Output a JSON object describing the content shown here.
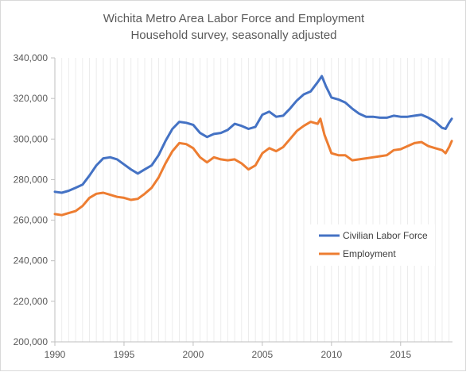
{
  "chart_data": {
    "type": "line",
    "title": "Wichita Metro Area Labor Force and Employment",
    "subtitle": "Household survey, seasonally adjusted",
    "xlabel": "",
    "ylabel": "",
    "xlim": [
      1990,
      2018.75
    ],
    "ylim": [
      200000,
      340000
    ],
    "x_ticks": [
      1990,
      1995,
      2000,
      2005,
      2010,
      2015
    ],
    "x_tick_labels": [
      "1990",
      "1995",
      "2000",
      "2005",
      "2010",
      "2015"
    ],
    "y_ticks": [
      200000,
      220000,
      240000,
      260000,
      280000,
      300000,
      320000,
      340000
    ],
    "y_tick_labels": [
      "200,000",
      "220,000",
      "240,000",
      "260,000",
      "280,000",
      "300,000",
      "320,000",
      "340,000"
    ],
    "grid": "vertical minor lines",
    "legend_position": "right",
    "series": [
      {
        "name": "Civilian Labor Force",
        "color": "#4472c4",
        "points": [
          [
            1990.0,
            274000
          ],
          [
            1990.5,
            273500
          ],
          [
            1991.0,
            274500
          ],
          [
            1991.5,
            276000
          ],
          [
            1992.0,
            277500
          ],
          [
            1992.5,
            282000
          ],
          [
            1993.0,
            287000
          ],
          [
            1993.5,
            290500
          ],
          [
            1994.0,
            291000
          ],
          [
            1994.5,
            290000
          ],
          [
            1995.0,
            287500
          ],
          [
            1995.5,
            285000
          ],
          [
            1996.0,
            283000
          ],
          [
            1996.5,
            285000
          ],
          [
            1997.0,
            287000
          ],
          [
            1997.5,
            292000
          ],
          [
            1998.0,
            299000
          ],
          [
            1998.5,
            305000
          ],
          [
            1999.0,
            308500
          ],
          [
            1999.5,
            308000
          ],
          [
            2000.0,
            307000
          ],
          [
            2000.5,
            303000
          ],
          [
            2001.0,
            301000
          ],
          [
            2001.5,
            302500
          ],
          [
            2002.0,
            303000
          ],
          [
            2002.5,
            304500
          ],
          [
            2003.0,
            307500
          ],
          [
            2003.5,
            306500
          ],
          [
            2004.0,
            305000
          ],
          [
            2004.5,
            306000
          ],
          [
            2005.0,
            312000
          ],
          [
            2005.5,
            313500
          ],
          [
            2006.0,
            311000
          ],
          [
            2006.5,
            311500
          ],
          [
            2007.0,
            315000
          ],
          [
            2007.5,
            319000
          ],
          [
            2008.0,
            322000
          ],
          [
            2008.5,
            323500
          ],
          [
            2009.0,
            328000
          ],
          [
            2009.3,
            331000
          ],
          [
            2009.6,
            326000
          ],
          [
            2010.0,
            320500
          ],
          [
            2010.5,
            319500
          ],
          [
            2011.0,
            318000
          ],
          [
            2011.5,
            315000
          ],
          [
            2012.0,
            312500
          ],
          [
            2012.5,
            311000
          ],
          [
            2013.0,
            311000
          ],
          [
            2013.5,
            310500
          ],
          [
            2014.0,
            310500
          ],
          [
            2014.5,
            311500
          ],
          [
            2015.0,
            311000
          ],
          [
            2015.5,
            311000
          ],
          [
            2016.0,
            311500
          ],
          [
            2016.5,
            312000
          ],
          [
            2017.0,
            310500
          ],
          [
            2017.5,
            308500
          ],
          [
            2018.0,
            305500
          ],
          [
            2018.25,
            305000
          ],
          [
            2018.5,
            308000
          ],
          [
            2018.7,
            310000
          ]
        ]
      },
      {
        "name": "Employment",
        "color": "#ed7d31",
        "points": [
          [
            1990.0,
            263000
          ],
          [
            1990.5,
            262500
          ],
          [
            1991.0,
            263500
          ],
          [
            1991.5,
            264500
          ],
          [
            1992.0,
            267000
          ],
          [
            1992.5,
            271000
          ],
          [
            1993.0,
            273000
          ],
          [
            1993.5,
            273500
          ],
          [
            1994.0,
            272500
          ],
          [
            1994.5,
            271500
          ],
          [
            1995.0,
            271000
          ],
          [
            1995.5,
            270000
          ],
          [
            1996.0,
            270500
          ],
          [
            1996.5,
            273000
          ],
          [
            1997.0,
            276000
          ],
          [
            1997.5,
            281000
          ],
          [
            1998.0,
            288000
          ],
          [
            1998.5,
            294000
          ],
          [
            1999.0,
            298000
          ],
          [
            1999.5,
            297500
          ],
          [
            2000.0,
            295500
          ],
          [
            2000.5,
            291000
          ],
          [
            2001.0,
            288500
          ],
          [
            2001.5,
            291000
          ],
          [
            2002.0,
            290000
          ],
          [
            2002.5,
            289500
          ],
          [
            2003.0,
            290000
          ],
          [
            2003.5,
            288000
          ],
          [
            2004.0,
            285000
          ],
          [
            2004.5,
            287000
          ],
          [
            2005.0,
            293000
          ],
          [
            2005.5,
            295500
          ],
          [
            2006.0,
            294000
          ],
          [
            2006.5,
            296000
          ],
          [
            2007.0,
            300000
          ],
          [
            2007.5,
            304000
          ],
          [
            2008.0,
            306500
          ],
          [
            2008.5,
            308500
          ],
          [
            2009.0,
            307500
          ],
          [
            2009.2,
            310000
          ],
          [
            2009.5,
            302000
          ],
          [
            2010.0,
            293000
          ],
          [
            2010.5,
            292000
          ],
          [
            2011.0,
            292000
          ],
          [
            2011.5,
            289500
          ],
          [
            2012.0,
            290000
          ],
          [
            2012.5,
            290500
          ],
          [
            2013.0,
            291000
          ],
          [
            2013.5,
            291500
          ],
          [
            2014.0,
            292000
          ],
          [
            2014.5,
            294500
          ],
          [
            2015.0,
            295000
          ],
          [
            2015.5,
            296500
          ],
          [
            2016.0,
            298000
          ],
          [
            2016.5,
            298500
          ],
          [
            2017.0,
            296500
          ],
          [
            2017.5,
            295500
          ],
          [
            2018.0,
            294500
          ],
          [
            2018.25,
            293000
          ],
          [
            2018.5,
            296000
          ],
          [
            2018.7,
            299000
          ]
        ]
      }
    ]
  }
}
